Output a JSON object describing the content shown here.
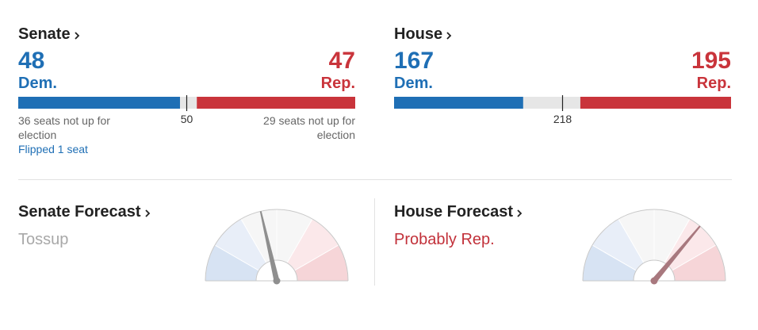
{
  "races": [
    {
      "title": "Senate",
      "majority": 50,
      "dem": {
        "seats": 48,
        "label": "Dem.",
        "note": "36 seats not up for election",
        "flipped": "Flipped 1 seat"
      },
      "rep": {
        "seats": 47,
        "label": "Rep.",
        "note": "29 seats not up for election"
      }
    },
    {
      "title": "House",
      "majority": 218,
      "dem": {
        "seats": 167,
        "label": "Dem."
      },
      "rep": {
        "seats": 195,
        "label": "Rep."
      }
    }
  ],
  "forecasts": [
    {
      "title": "Senate Forecast",
      "rating": "Tossup",
      "rating_color": "#a8a8a8",
      "needle": -13
    },
    {
      "title": "House Forecast",
      "rating": "Probably Rep.",
      "rating_color": "#c2313a",
      "needle": 40
    }
  ]
}
